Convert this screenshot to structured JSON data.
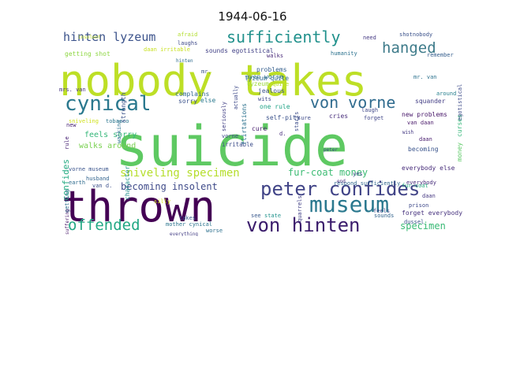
{
  "title": "1944-06-16",
  "words": [
    {
      "text": "nobody takes",
      "color": "#bddf26"
    },
    {
      "text": "suicide",
      "color": "#5ec962"
    },
    {
      "text": "thrown",
      "color": "#440154"
    },
    {
      "text": "peter confides",
      "color": "#414487"
    },
    {
      "text": "von hinten",
      "color": "#3b1c6c"
    },
    {
      "text": "museum",
      "color": "#2a788e"
    },
    {
      "text": "cynical",
      "color": "#2a788e"
    },
    {
      "text": "offended",
      "color": "#22a884"
    },
    {
      "text": "sufficiently",
      "color": "#21918c"
    },
    {
      "text": "hanged",
      "color": "#3e7b8a"
    },
    {
      "text": "von vorne",
      "color": "#2f6b8e"
    },
    {
      "text": "hinten lyzeum",
      "color": "#3b528b"
    },
    {
      "text": "sniveling specimen",
      "color": "#b5de2b"
    },
    {
      "text": "fur-coat money",
      "color": "#3dbc74"
    },
    {
      "text": "specimen",
      "color": "#3aba76"
    },
    {
      "text": "becoming insolent",
      "color": "#3e4a89"
    },
    {
      "text": "confides",
      "color": "#25ab82"
    },
    {
      "text": "feels sorry",
      "color": "#35b779"
    },
    {
      "text": "walks around",
      "color": "#7ad151"
    },
    {
      "text": "sounds egotistical",
      "color": "#424186"
    },
    {
      "text": "getting shot",
      "color": "#8fd744"
    },
    {
      "text": "daan irritable",
      "color": "#c8e020"
    },
    {
      "text": "complains",
      "color": "#31688e"
    },
    {
      "text": "jealous",
      "color": "#3b528b"
    },
    {
      "text": "problems",
      "color": "#355f8d"
    },
    {
      "text": "even worse",
      "color": "#2d708e"
    },
    {
      "text": "walks",
      "color": "#482878"
    },
    {
      "text": "lyzeum",
      "color": "#9bd93c"
    },
    {
      "text": "quite",
      "color": "#b8de29"
    },
    {
      "text": "wits",
      "color": "#3e4989"
    },
    {
      "text": "one rule",
      "color": "#20a386"
    },
    {
      "text": "self-pity",
      "color": "#3b528b"
    },
    {
      "text": "cure",
      "color": "#481f70"
    },
    {
      "text": "cries",
      "color": "#472d7b"
    },
    {
      "text": "laugh",
      "color": "#3f4788"
    },
    {
      "text": "forget",
      "color": "#404688"
    },
    {
      "text": "new problems",
      "color": "#48186a"
    },
    {
      "text": "van daan",
      "color": "#481769"
    },
    {
      "text": "becoming",
      "color": "#3a548c"
    },
    {
      "text": "squander",
      "color": "#433e85"
    },
    {
      "text": "everybody else",
      "color": "#472c7a"
    },
    {
      "text": "prison",
      "color": "#3f4a8a"
    },
    {
      "text": "daan",
      "color": "#453781"
    },
    {
      "text": "forget everybody",
      "color": "#46327e"
    },
    {
      "text": "respond sufficiently",
      "color": "#31688e"
    },
    {
      "text": "mr. van",
      "color": "#2c728e"
    },
    {
      "text": "around",
      "color": "#277f8e"
    },
    {
      "text": "remember",
      "color": "#355e8d"
    },
    {
      "text": "humanity",
      "color": "#2c728e"
    },
    {
      "text": "shotnobody",
      "color": "#3b528b"
    },
    {
      "text": "need",
      "color": "#443983"
    },
    {
      "text": "afraid",
      "color": "#b2dd2d"
    },
    {
      "text": "laughs",
      "color": "#3e4a89"
    },
    {
      "text": "hinten",
      "color": "#2f6c8e"
    },
    {
      "text": "mrs. van",
      "color": "#46337f"
    },
    {
      "text": "insolent",
      "color": "#c0df25"
    },
    {
      "text": "sniveling",
      "color": "#d0e11c"
    },
    {
      "text": "tobacco",
      "color": "#2a768e"
    },
    {
      "text": "else",
      "color": "#2a788e"
    },
    {
      "text": "sorry",
      "color": "#3b528b"
    },
    {
      "text": "new",
      "color": "#482475"
    },
    {
      "text": "husband",
      "color": "#32648e"
    },
    {
      "text": "van d.",
      "color": "#3c508b"
    },
    {
      "text": "earth",
      "color": "#2f6c8e"
    },
    {
      "text": "vorne museum",
      "color": "#3a548c"
    },
    {
      "text": "getting",
      "color": "#2e6f8e"
    },
    {
      "text": "rule",
      "color": "#482374"
    },
    {
      "text": "suffering",
      "color": "#48186a"
    },
    {
      "text": "character",
      "color": "#21918c"
    },
    {
      "text": "silly",
      "color": "#d2e21b"
    },
    {
      "text": "takes",
      "color": "#365c8d"
    },
    {
      "text": "mother cynical",
      "color": "#2b758e"
    },
    {
      "text": "worse",
      "color": "#2d708e"
    },
    {
      "text": "see",
      "color": "#38588c"
    },
    {
      "text": "state",
      "color": "#20928c"
    },
    {
      "text": "quarrels",
      "color": "#424086"
    },
    {
      "text": "everybody",
      "color": "#472d7b"
    },
    {
      "text": "dussel",
      "color": "#3b528b"
    },
    {
      "text": "feels",
      "color": "#3e4989"
    },
    {
      "text": "fur-coat",
      "color": "#28ae80"
    },
    {
      "text": "money",
      "color": "#5ac864"
    },
    {
      "text": "curses",
      "color": "#35b779"
    },
    {
      "text": "egotistical",
      "color": "#3e4c8a"
    },
    {
      "text": "end",
      "color": "#472f7d"
    },
    {
      "text": "sounds",
      "color": "#33638d"
    },
    {
      "text": "strength",
      "color": "#3b528b"
    },
    {
      "text": "walking",
      "color": "#2c718e"
    },
    {
      "text": "vorne",
      "color": "#3f4889"
    },
    {
      "text": "irritable",
      "color": "#3d4e8a"
    },
    {
      "text": "seriously",
      "color": "#424086"
    },
    {
      "text": "actually",
      "color": "#3e4a89"
    },
    {
      "text": "flirtations",
      "color": "#2c728e"
    },
    {
      "text": "starts",
      "color": "#3d4d8a"
    },
    {
      "text": "d.",
      "color": "#472c7a"
    },
    {
      "text": "peter",
      "color": "#3f4788"
    },
    {
      "text": "everything",
      "color": "#433d84"
    },
    {
      "text": "yes",
      "color": "#3e4989"
    },
    {
      "text": "wish",
      "color": "#443983"
    },
    {
      "text": "sure",
      "color": "#3e4a89"
    },
    {
      "text": "mr.",
      "color": "#3a548c"
    },
    {
      "text": "lyzeum quite",
      "color": "#2f6b8e"
    },
    {
      "text": "daan",
      "color": "#481c6e"
    }
  ]
}
